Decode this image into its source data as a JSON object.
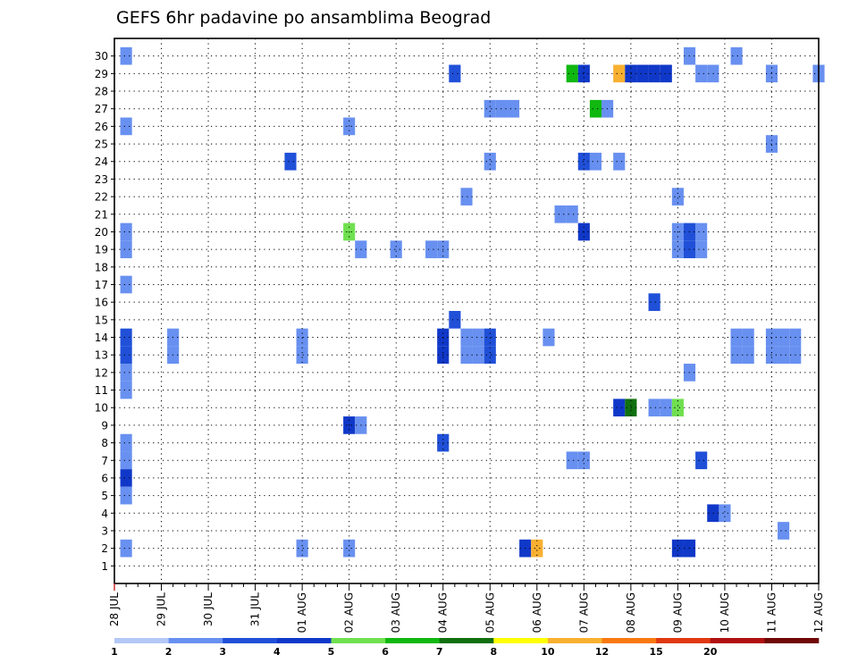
{
  "chart_data": {
    "type": "heatmap",
    "title": "GEFS 6hr padavine po ansamblima Beograd",
    "x_tick_labels": [
      "28 JUL",
      "29 JUL",
      "30 JUL",
      "31 JUL",
      "01 AUG",
      "02 AUG",
      "03 AUG",
      "04 AUG",
      "05 AUG",
      "06 AUG",
      "07 AUG",
      "08 AUG",
      "09 AUG",
      "10 AUG",
      "11 AUG",
      "12 AUG"
    ],
    "x_unit": "6-hour steps from 28 JUL 00",
    "xlim": [
      0,
      60
    ],
    "y_tick_labels": [
      "1",
      "2",
      "3",
      "4",
      "5",
      "6",
      "7",
      "8",
      "9",
      "10",
      "11",
      "12",
      "13",
      "14",
      "15",
      "16",
      "17",
      "18",
      "19",
      "20",
      "21",
      "22",
      "23",
      "24",
      "25",
      "26",
      "27",
      "28",
      "29",
      "30"
    ],
    "ylim": [
      0,
      31
    ],
    "grid": "dotted",
    "colorbar": {
      "labels": [
        "1",
        "2",
        "3",
        "4",
        "5",
        "6",
        "7",
        "8",
        "10",
        "12",
        "15",
        "20"
      ],
      "colors": [
        "#b4c8f8",
        "#6890f0",
        "#2050d8",
        "#1038c8",
        "#70e050",
        "#10b810",
        "#107010",
        "#ffff00",
        "#f8b030",
        "#f87810",
        "#e03810",
        "#b01010",
        "#700808"
      ]
    },
    "cells": [
      {
        "m": 30,
        "t": [
          0
        ],
        "c": 1
      },
      {
        "m": 29,
        "t": [
          28
        ],
        "c": 2
      },
      {
        "m": 29,
        "t": [
          38
        ],
        "c": 5
      },
      {
        "m": 29,
        "t": [
          39
        ],
        "c": 3
      },
      {
        "m": 29,
        "t": [
          42
        ],
        "c": 8
      },
      {
        "m": 29,
        "t": [
          43,
          44,
          45,
          46
        ],
        "c": 3
      },
      {
        "m": 29,
        "t": [
          49,
          50,
          55,
          59
        ],
        "c": 1
      },
      {
        "m": 30,
        "t": [
          48,
          52
        ],
        "c": 1
      },
      {
        "m": 27,
        "t": [
          31,
          32,
          33
        ],
        "c": 1
      },
      {
        "m": 27,
        "t": [
          40
        ],
        "c": 5
      },
      {
        "m": 27,
        "t": [
          41
        ],
        "c": 1
      },
      {
        "m": 26,
        "t": [
          0,
          19
        ],
        "c": 1
      },
      {
        "m": 25,
        "t": [
          55
        ],
        "c": 1
      },
      {
        "m": 24,
        "t": [
          14
        ],
        "c": 2
      },
      {
        "m": 24,
        "t": [
          31,
          40,
          42
        ],
        "c": 1
      },
      {
        "m": 24,
        "t": [
          39
        ],
        "c": 2
      },
      {
        "m": 22,
        "t": [
          29,
          47
        ],
        "c": 1
      },
      {
        "m": 21,
        "t": [
          37,
          38
        ],
        "c": 1
      },
      {
        "m": 20,
        "t": [
          19
        ],
        "c": 4
      },
      {
        "m": 20,
        "t": [
          39
        ],
        "c": 3
      },
      {
        "m": 20,
        "t": [
          47,
          49
        ],
        "c": 1
      },
      {
        "m": 20,
        "t": [
          48
        ],
        "c": 2
      },
      {
        "m": 20,
        "t": [
          0
        ],
        "c": 1
      },
      {
        "m": 19,
        "t": [
          0,
          47,
          49
        ],
        "c": 1
      },
      {
        "m": 19,
        "t": [
          48
        ],
        "c": 2
      },
      {
        "m": 19,
        "t": [
          20,
          23,
          26,
          27
        ],
        "c": 1
      },
      {
        "m": 17,
        "t": [
          0
        ],
        "c": 1
      },
      {
        "m": 16,
        "t": [
          45
        ],
        "c": 2
      },
      {
        "m": 15,
        "t": [
          28
        ],
        "c": 2
      },
      {
        "m": 14,
        "t": [
          36
        ],
        "c": 1
      },
      {
        "m": 14,
        "t": [
          27
        ],
        "c": 3
      },
      {
        "m": 14,
        "t": [
          29,
          30,
          4,
          15,
          52,
          53,
          55,
          56,
          57
        ],
        "c": 1
      },
      {
        "m": 14,
        "t": [
          0,
          31
        ],
        "c": 2
      },
      {
        "m": 13,
        "t": [
          27
        ],
        "c": 3
      },
      {
        "m": 13,
        "t": [
          29,
          30,
          4,
          15,
          52,
          53,
          55,
          56,
          57
        ],
        "c": 1
      },
      {
        "m": 13,
        "t": [
          0,
          31
        ],
        "c": 2
      },
      {
        "m": 12,
        "t": [
          0,
          48
        ],
        "c": 1
      },
      {
        "m": 11,
        "t": [
          0
        ],
        "c": 1
      },
      {
        "m": 10,
        "t": [
          42
        ],
        "c": 3
      },
      {
        "m": 10,
        "t": [
          43
        ],
        "c": 6
      },
      {
        "m": 10,
        "t": [
          45,
          46
        ],
        "c": 1
      },
      {
        "m": 10,
        "t": [
          47
        ],
        "c": 4
      },
      {
        "m": 9,
        "t": [
          19
        ],
        "c": 3
      },
      {
        "m": 9,
        "t": [
          20
        ],
        "c": 1
      },
      {
        "m": 8,
        "t": [
          27
        ],
        "c": 2
      },
      {
        "m": 8,
        "t": [
          0
        ],
        "c": 1
      },
      {
        "m": 7,
        "t": [
          0,
          38,
          39
        ],
        "c": 1
      },
      {
        "m": 7,
        "t": [
          49
        ],
        "c": 2
      },
      {
        "m": 6,
        "t": [
          0
        ],
        "c": 3
      },
      {
        "m": 5,
        "t": [
          0
        ],
        "c": 1
      },
      {
        "m": 4,
        "t": [
          50
        ],
        "c": 3
      },
      {
        "m": 4,
        "t": [
          51
        ],
        "c": 1
      },
      {
        "m": 3,
        "t": [
          56
        ],
        "c": 1
      },
      {
        "m": 2,
        "t": [
          0,
          15,
          19
        ],
        "c": 1
      },
      {
        "m": 2,
        "t": [
          34
        ],
        "c": 3
      },
      {
        "m": 2,
        "t": [
          35
        ],
        "c": 8
      },
      {
        "m": 2,
        "t": [
          47,
          48
        ],
        "c": 3
      }
    ]
  }
}
